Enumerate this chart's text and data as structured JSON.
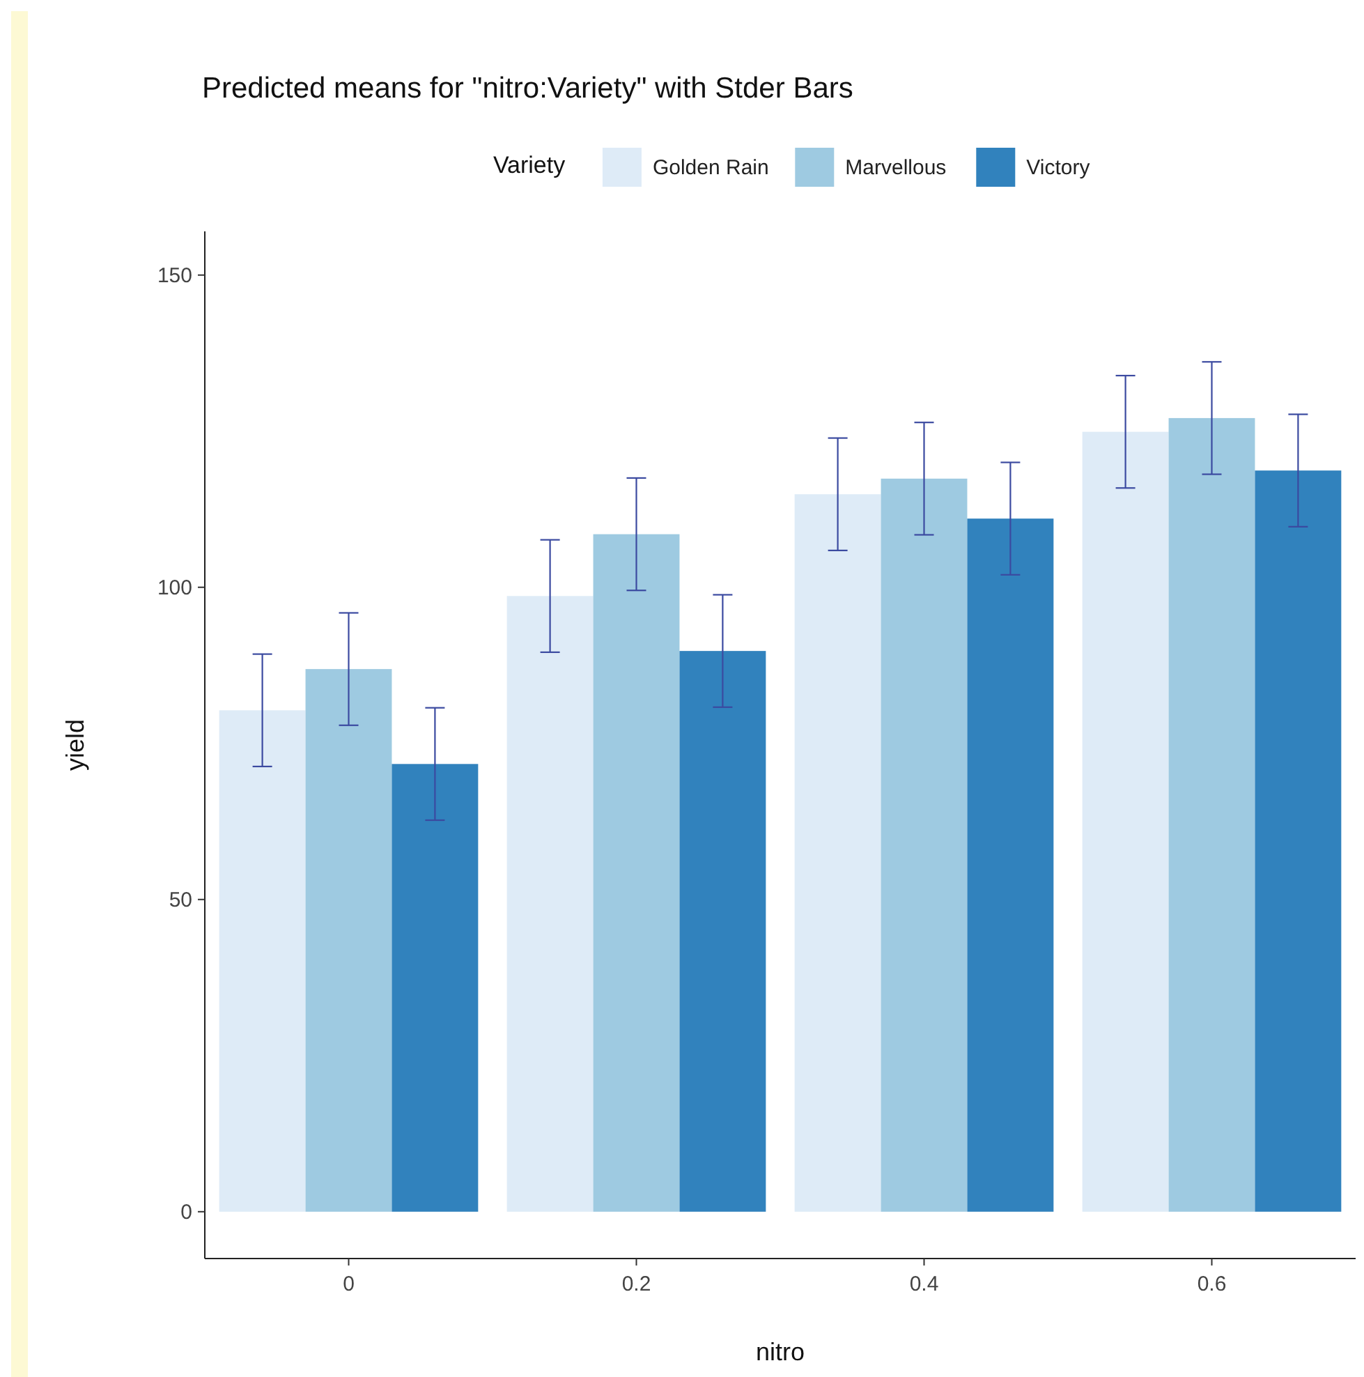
{
  "chart_data": {
    "type": "bar",
    "title": "Predicted means for \"nitro:Variety\" with Stder Bars",
    "xlabel": "nitro",
    "ylabel": "yield",
    "legend_title": "Variety",
    "legend": "top",
    "categories": [
      "0",
      "0.2",
      "0.4",
      "0.6"
    ],
    "series": [
      {
        "name": "Golden Rain",
        "color": "#deebf7",
        "values": [
          80.3,
          98.6,
          114.9,
          124.9
        ],
        "errors": [
          9,
          9,
          9,
          9
        ]
      },
      {
        "name": "Marvellous",
        "color": "#9ecae1",
        "values": [
          86.9,
          108.5,
          117.4,
          127.1
        ],
        "errors": [
          9,
          9,
          9,
          9
        ]
      },
      {
        "name": "Victory",
        "color": "#3182bd",
        "values": [
          71.7,
          89.8,
          111.0,
          118.7
        ],
        "errors": [
          9,
          9,
          9,
          9
        ]
      }
    ],
    "ylim": [
      -7.5,
      157
    ],
    "yticks": [
      0,
      50,
      100,
      150
    ],
    "grid": false
  }
}
